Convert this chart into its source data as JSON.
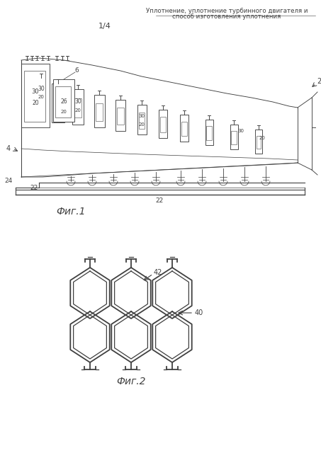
{
  "title_line1": "Уплотнение, уплотнение турбинного двигателя и",
  "title_line2": "способ изготовления уплотнения",
  "page_indicator": "1/4",
  "fig1_label": "Фиг.1",
  "fig2_label": "Фиг.2",
  "label_2": "2",
  "label_4": "4",
  "label_6": "6",
  "label_20a": "20",
  "label_20b": "20",
  "label_20c": "20",
  "label_20d": "20",
  "label_22a": "22",
  "label_22b": "22",
  "label_24": "24",
  "label_26": "26",
  "label_30a": "30",
  "label_30b": "30",
  "label_30c": "30",
  "label_30d": "30",
  "label_40": "40",
  "label_42": "42",
  "bg_color": "#ffffff",
  "line_color": "#404040",
  "text_color": "#404040",
  "fig_width": 4.53,
  "fig_height": 6.4,
  "dpi": 100
}
